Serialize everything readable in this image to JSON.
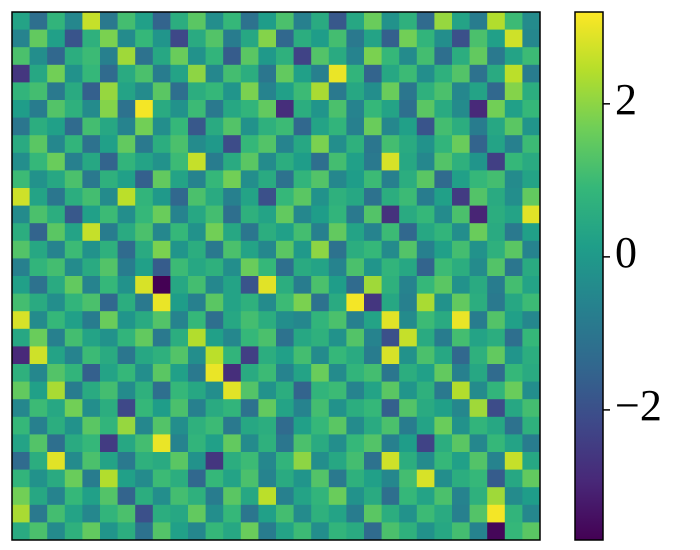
{
  "chart_data": {
    "type": "heatmap",
    "colormap": "viridis",
    "zlim": [
      -3.7,
      3.2
    ],
    "colorbar_ticks": [
      {
        "value": -2,
        "label": "−2"
      },
      0,
      2
    ],
    "z": [
      [
        0.3,
        -1.2,
        0.8,
        -0.5,
        2.6,
        -0.9,
        1.1,
        0.2,
        -1.5,
        0.6,
        1.4,
        -0.3,
        0.9,
        -1.1,
        0.1,
        1.2,
        -0.7,
        0.5,
        -1.8,
        0.4,
        1.6,
        -0.2,
        0.7,
        -1.3,
        2.1,
        0.3,
        -0.8,
        2.4,
        1.0,
        -0.4
      ],
      [
        -0.6,
        1.5,
        0.2,
        -1.9,
        0.7,
        1.8,
        -0.4,
        0.9,
        -0.1,
        -2.2,
        0.5,
        1.3,
        -0.8,
        0.4,
        1.9,
        -1.4,
        0.6,
        0.1,
        1.1,
        -0.9,
        0.3,
        -1.6,
        1.7,
        0.8,
        -0.3,
        -2.0,
        1.2,
        0.2,
        2.7,
        -0.5
      ],
      [
        1.2,
        -0.3,
        -1.4,
        0.6,
        1.0,
        -0.7,
        2.2,
        -1.1,
        0.4,
        1.6,
        -0.2,
        0.8,
        -1.7,
        1.4,
        0.0,
        0.7,
        -2.3,
        1.3,
        0.5,
        -0.6,
        1.8,
        0.9,
        -0.4,
        1.1,
        -1.2,
        0.6,
        1.5,
        -0.9,
        0.3,
        1.0
      ],
      [
        -2.6,
        0.4,
        1.7,
        -0.2,
        0.9,
        -1.3,
        0.5,
        1.2,
        -0.8,
        0.3,
        2.0,
        -0.5,
        1.1,
        0.6,
        -1.0,
        1.5,
        0.2,
        -0.7,
        3.0,
        0.8,
        -1.5,
        0.4,
        1.0,
        -0.3,
        0.7,
        1.3,
        -1.1,
        0.5,
        2.5,
        -0.8
      ],
      [
        0.8,
        1.1,
        -0.9,
        0.5,
        -1.6,
        2.1,
        0.3,
        -0.4,
        1.4,
        -1.2,
        0.6,
        0.9,
        -0.1,
        1.8,
        -0.6,
        0.2,
        1.0,
        2.3,
        -0.9,
        0.4,
        -0.3,
        1.6,
        -1.0,
        0.7,
        1.2,
        -0.5,
        0.3,
        -1.4,
        1.9,
        0.6
      ],
      [
        0.1,
        -0.8,
        1.3,
        0.7,
        -0.4,
        1.9,
        -1.1,
        3.1,
        0.5,
        -0.2,
        1.0,
        -0.9,
        0.4,
        0.8,
        1.5,
        -2.8,
        0.6,
        -0.1,
        1.2,
        -0.6,
        0.9,
        0.3,
        -1.2,
        1.4,
        0.5,
        -0.4,
        -2.9,
        1.7,
        0.2,
        0.9
      ],
      [
        -1.0,
        0.6,
        0.2,
        -1.3,
        1.1,
        0.4,
        -0.6,
        1.7,
        -0.3,
        0.9,
        -1.8,
        0.5,
        1.3,
        -0.2,
        0.7,
        1.0,
        -1.4,
        0.3,
        0.8,
        -0.7,
        1.6,
        -0.5,
        0.2,
        -1.9,
        1.1,
        0.6,
        -0.8,
        0.4,
        1.4,
        -0.1
      ],
      [
        0.5,
        1.4,
        -0.5,
        0.8,
        -1.1,
        0.2,
        1.5,
        -0.9,
        0.6,
        1.2,
        -0.4,
        0.0,
        -2.1,
        0.9,
        1.3,
        -0.6,
        0.4,
        1.8,
        -0.3,
        0.7,
        -1.0,
        1.1,
        0.5,
        -0.2,
        0.8,
        1.6,
        -1.5,
        0.3,
        -0.7,
        1.0
      ],
      [
        -0.3,
        0.9,
        1.6,
        -0.7,
        0.4,
        -1.5,
        0.8,
        0.3,
        -0.2,
        1.0,
        2.6,
        -0.8,
        0.5,
        1.4,
        -0.4,
        0.6,
        0.1,
        -1.2,
        1.1,
        0.2,
        -0.9,
        2.8,
        0.4,
        -0.5,
        1.3,
        0.7,
        -0.1,
        -2.4,
        0.9,
        0.5
      ],
      [
        1.0,
        -0.2,
        0.4,
        1.2,
        -0.9,
        0.7,
        0.2,
        -1.6,
        1.5,
        0.3,
        -0.6,
        0.9,
        1.7,
        -0.3,
        0.5,
        -1.1,
        0.8,
        1.3,
        -0.5,
        0.1,
        1.0,
        -0.7,
        0.6,
        1.4,
        -1.3,
        0.2,
        0.9,
        1.1,
        -0.4,
        0.3
      ],
      [
        2.7,
        0.3,
        -1.0,
        0.6,
        1.1,
        -0.4,
        2.5,
        0.8,
        0.0,
        -1.4,
        1.2,
        0.5,
        -0.7,
        0.3,
        -2.0,
        0.9,
        1.4,
        -0.2,
        0.7,
        0.4,
        -1.1,
        0.6,
        1.0,
        -0.8,
        0.2,
        -2.5,
        1.3,
        0.5,
        -0.3,
        1.5
      ],
      [
        -0.4,
        1.2,
        0.6,
        -1.8,
        0.2,
        1.0,
        -0.3,
        0.9,
        1.6,
        -0.6,
        0.4,
        1.1,
        -1.2,
        0.7,
        0.3,
        1.5,
        -0.5,
        0.1,
        0.8,
        -0.9,
        1.3,
        -2.7,
        0.5,
        0.9,
        -0.4,
        1.2,
        -3.0,
        0.6,
        0.3,
        2.9
      ],
      [
        0.6,
        -1.5,
        1.4,
        0.3,
        2.6,
        -0.8,
        0.5,
        1.2,
        -0.5,
        0.9,
        -0.2,
        1.7,
        0.4,
        -1.0,
        0.6,
        0.2,
        1.1,
        -0.7,
        1.5,
        0.3,
        -0.6,
        1.0,
        -1.4,
        0.4,
        0.8,
        -0.3,
        1.6,
        0.5,
        -0.9,
        0.2
      ],
      [
        1.3,
        0.4,
        -0.6,
        1.0,
        -0.2,
        0.7,
        -1.3,
        0.5,
        1.8,
        -0.1,
        0.6,
        -0.9,
        1.2,
        0.3,
        -0.5,
        1.4,
        0.0,
        2.0,
        -1.1,
        0.6,
        0.9,
        -0.4,
        1.3,
        -0.7,
        0.2,
        1.1,
        -0.2,
        0.7,
        1.4,
        -0.6
      ],
      [
        -0.7,
        0.8,
        1.1,
        -0.4,
        0.5,
        1.3,
        -0.8,
        0.2,
        -1.7,
        1.0,
        0.4,
        0.7,
        -0.3,
        1.6,
        0.9,
        -1.2,
        0.5,
        0.3,
        -0.6,
        1.2,
        -0.1,
        0.8,
        0.4,
        -1.5,
        1.0,
        0.6,
        -0.4,
        1.3,
        -1.0,
        0.5
      ],
      [
        0.2,
        -1.1,
        0.5,
        1.5,
        -0.6,
        0.9,
        -0.2,
        2.8,
        -3.7,
        0.4,
        1.1,
        -0.5,
        0.3,
        -1.9,
        2.9,
        0.6,
        -0.8,
        1.2,
        0.1,
        -1.3,
        2.2,
        0.7,
        -0.6,
        0.9,
        1.4,
        -0.2,
        0.5,
        -0.8,
        1.1,
        0.3
      ],
      [
        1.1,
        0.5,
        -0.3,
        0.8,
        1.2,
        -1.4,
        0.6,
        -0.9,
        3.0,
        0.1,
        -0.7,
        1.4,
        0.3,
        0.7,
        -0.4,
        1.0,
        1.8,
        -1.1,
        0.5,
        3.1,
        -2.6,
        0.4,
        -0.7,
        2.3,
        -0.2,
        1.5,
        0.6,
        -0.9,
        0.4,
        1.0
      ],
      [
        2.8,
        -0.4,
        0.9,
        0.2,
        -0.8,
        1.6,
        -0.1,
        0.5,
        1.3,
        -0.6,
        0.9,
        -1.2,
        0.4,
        1.1,
        0.6,
        -0.3,
        -0.5,
        0.8,
        1.2,
        -0.7,
        0.3,
        2.9,
        -0.4,
        1.0,
        0.5,
        3.0,
        -0.8,
        1.3,
        0.2,
        -0.5
      ],
      [
        0.4,
        1.6,
        -0.7,
        1.1,
        0.3,
        -0.2,
        0.8,
        1.5,
        -0.9,
        0.6,
        2.4,
        0.2,
        -0.5,
        0.9,
        1.2,
        -1.1,
        0.4,
        0.7,
        -0.2,
        1.3,
        -0.6,
        -2.0,
        2.6,
        0.5,
        -0.8,
        1.1,
        0.3,
        0.6,
        -1.2,
        0.9
      ],
      [
        -2.9,
        2.7,
        0.3,
        -0.6,
        1.0,
        0.5,
        -1.0,
        0.4,
        0.7,
        1.3,
        -0.3,
        2.5,
        0.8,
        -2.4,
        0.6,
        0.2,
        1.1,
        -0.4,
        0.9,
        0.5,
        -0.8,
        2.8,
        -0.2,
        1.2,
        0.4,
        -1.4,
        0.7,
        1.5,
        -0.1,
        0.6
      ],
      [
        0.7,
        -0.5,
        1.3,
        0.8,
        -1.6,
        0.3,
        0.9,
        -0.3,
        1.4,
        0.2,
        -0.9,
        3.0,
        -2.8,
        0.5,
        1.0,
        -0.6,
        0.3,
        1.6,
        -0.4,
        0.8,
        1.1,
        -1.0,
        0.6,
        0.2,
        1.5,
        -0.7,
        0.4,
        -1.3,
        0.9,
        0.5
      ],
      [
        1.5,
        0.2,
        2.3,
        -0.8,
        0.5,
        1.1,
        -0.4,
        0.7,
        -1.2,
        0.9,
        0.4,
        -0.3,
        2.9,
        1.3,
        -0.2,
        0.6,
        -1.5,
        0.8,
        1.0,
        -0.6,
        0.3,
        1.4,
        -0.1,
        0.7,
        -0.9,
        2.4,
        -0.4,
        0.8,
        1.6,
        -0.3
      ],
      [
        -0.5,
        1.0,
        0.4,
        1.7,
        -0.3,
        0.6,
        -2.2,
        0.9,
        0.1,
        1.2,
        -0.7,
        0.5,
        0.8,
        -1.1,
        1.5,
        0.3,
        -0.6,
        1.1,
        -0.2,
        0.6,
        0.9,
        -1.6,
        1.3,
        0.5,
        0.2,
        -0.5,
        2.2,
        -2.1,
        0.4,
        1.1
      ],
      [
        0.9,
        -0.7,
        0.6,
        -0.2,
        1.4,
        0.8,
        2.1,
        -0.5,
        1.3,
        -0.3,
        0.7,
        1.0,
        -0.9,
        0.4,
        0.6,
        -1.3,
        0.2,
        0.9,
        1.4,
        -0.4,
        0.5,
        1.2,
        -0.8,
        0.3,
        1.6,
        -0.2,
        0.8,
        0.4,
        -1.1,
        0.7
      ],
      [
        0.3,
        1.3,
        -1.2,
        0.5,
        0.9,
        -2.5,
        0.4,
        1.1,
        3.0,
        -0.6,
        0.8,
        0.2,
        1.5,
        -0.4,
        0.7,
        -1.0,
        1.2,
        0.5,
        -0.3,
        0.9,
        1.3,
        -0.7,
        0.1,
        -2.3,
        0.6,
        1.4,
        -0.5,
        0.9,
        0.3,
        -0.8
      ],
      [
        -1.3,
        0.6,
        2.9,
        -0.4,
        1.2,
        0.3,
        -0.9,
        0.7,
        0.5,
        1.4,
        -0.2,
        -2.6,
        0.6,
        1.0,
        -0.5,
        0.8,
        2.0,
        -0.3,
        0.4,
        1.1,
        -1.1,
        2.7,
        0.6,
        -0.4,
        0.9,
        0.2,
        1.3,
        -0.6,
        2.6,
        0.4
      ],
      [
        0.8,
        -0.2,
        0.5,
        1.6,
        -0.8,
        2.4,
        0.2,
        -0.4,
        1.0,
        0.6,
        -1.4,
        0.9,
        0.3,
        1.2,
        -0.6,
        0.5,
        -0.1,
        1.3,
        -0.9,
        0.7,
        0.2,
        -0.5,
        1.1,
        2.8,
        -0.3,
        0.6,
        0.9,
        -1.7,
        0.4,
        1.5
      ],
      [
        1.7,
        0.4,
        -0.6,
        0.9,
        0.2,
        1.3,
        -1.5,
        0.6,
        -0.3,
        1.1,
        0.7,
        -0.8,
        1.4,
        0.4,
        2.5,
        -0.7,
        0.3,
        0.8,
        1.6,
        -0.2,
        0.5,
        -1.2,
        0.9,
        0.3,
        1.2,
        -0.6,
        0.7,
        2.2,
        -0.4,
        0.1
      ],
      [
        2.3,
        -0.9,
        1.1,
        0.3,
        -0.5,
        0.8,
        1.2,
        -2.0,
        0.6,
        0.4,
        1.5,
        -0.3,
        0.9,
        -1.0,
        0.2,
        1.1,
        -0.4,
        0.7,
        0.3,
        -0.8,
        1.4,
        0.6,
        -0.2,
        1.0,
        0.5,
        -0.7,
        1.3,
        3.1,
        0.8,
        -0.5
      ],
      [
        0.5,
        1.2,
        -0.4,
        0.7,
        1.5,
        -0.1,
        0.6,
        -1.1,
        1.3,
        0.2,
        -0.5,
        0.9,
        0.4,
        1.6,
        -0.8,
        0.3,
        1.0,
        -0.3,
        0.8,
        0.5,
        -1.3,
        1.2,
        0.7,
        -0.2,
        0.4,
        1.1,
        -0.6,
        -3.6,
        0.9,
        1.4
      ]
    ]
  }
}
